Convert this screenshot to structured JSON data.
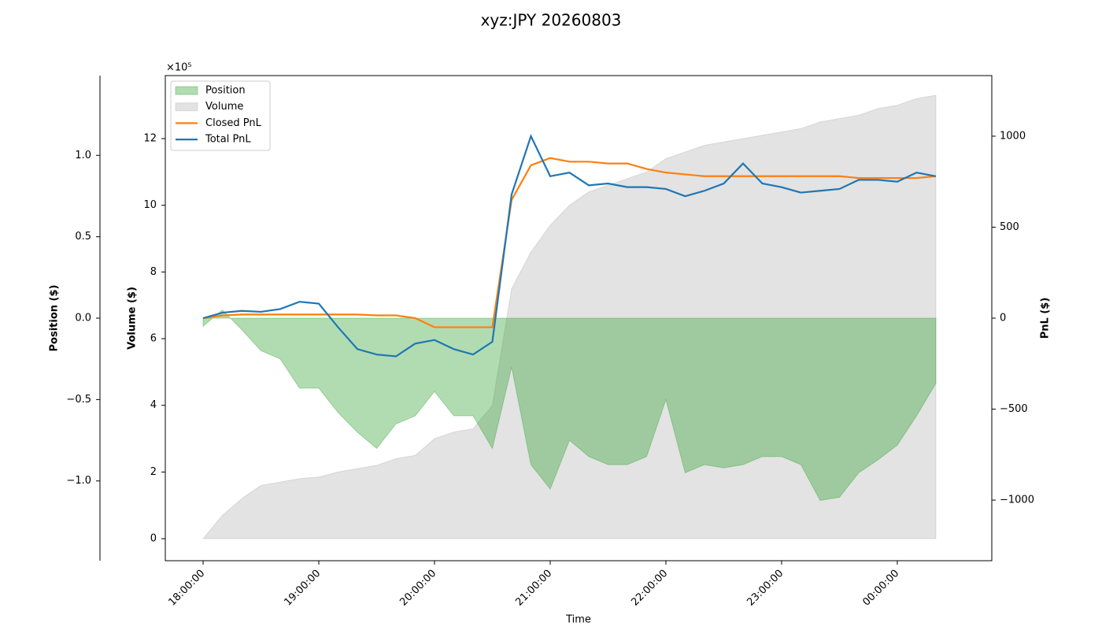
{
  "chart_data": {
    "type": "line",
    "title": "xyz:JPY 20260803",
    "xlabel": "Time",
    "x": [
      "18:00:00",
      "18:10:00",
      "18:20:00",
      "18:30:00",
      "18:40:00",
      "18:50:00",
      "19:00:00",
      "19:10:00",
      "19:20:00",
      "19:30:00",
      "19:40:00",
      "19:50:00",
      "20:00:00",
      "20:10:00",
      "20:20:00",
      "20:30:00",
      "20:40:00",
      "20:50:00",
      "21:00:00",
      "21:10:00",
      "21:20:00",
      "21:30:00",
      "21:40:00",
      "21:50:00",
      "22:00:00",
      "22:10:00",
      "22:20:00",
      "22:30:00",
      "22:40:00",
      "22:50:00",
      "23:00:00",
      "23:10:00",
      "23:20:00",
      "23:30:00",
      "23:40:00",
      "23:50:00",
      "00:00:00",
      "00:10:00",
      "00:20:00"
    ],
    "xlim": [
      "17:40:24",
      "00:49:00"
    ],
    "xticks": [
      "18:00:00",
      "19:00:00",
      "20:00:00",
      "21:00:00",
      "22:00:00",
      "23:00:00",
      "00:00:00"
    ],
    "axes": {
      "position": {
        "label": "Position ($)",
        "color": "#008000",
        "offset_label": "×10⁵",
        "ylim": [
          -1.49,
          1.49
        ],
        "yticks": [
          {
            "value": -1,
            "label": "−1.0"
          },
          {
            "value": -0.5,
            "label": "−0.5"
          },
          {
            "value": 0,
            "label": "0.0"
          },
          0.5,
          {
            "value": 1,
            "label": "1.0"
          }
        ]
      },
      "volume": {
        "label": "Volume ($)",
        "color": "#808080",
        "ylim": [
          -0.66,
          13.89
        ],
        "yticks": [
          0,
          2,
          4,
          6,
          8,
          10,
          12
        ]
      },
      "pnl": {
        "label": "PnL ($)",
        "color": "#000000",
        "ylim": [
          -1333,
          1333
        ],
        "yticks": [
          {
            "value": -1000,
            "label": "−1000"
          },
          {
            "value": -500,
            "label": "−500"
          },
          0,
          500,
          1000
        ]
      }
    },
    "series": [
      {
        "name": "Position",
        "type": "area",
        "axis": "position",
        "color": "#2ca02c",
        "alpha": 0.37,
        "values": [
          -0.05,
          0.05,
          -0.07,
          -0.2,
          -0.25,
          -0.43,
          -0.43,
          -0.58,
          -0.7,
          -0.8,
          -0.65,
          -0.6,
          -0.45,
          -0.6,
          -0.6,
          -0.8,
          -0.3,
          -0.9,
          -1.05,
          -0.75,
          -0.85,
          -0.9,
          -0.9,
          -0.85,
          -0.5,
          -0.95,
          -0.9,
          -0.92,
          -0.9,
          -0.85,
          -0.85,
          -0.9,
          -1.12,
          -1.1,
          -0.95,
          -0.87,
          -0.78,
          -0.6,
          -0.4
        ]
      },
      {
        "name": "Volume",
        "type": "area",
        "axis": "volume",
        "color": "#808080",
        "alpha": 0.22,
        "values": [
          0,
          0.7,
          1.2,
          1.6,
          1.7,
          1.8,
          1.85,
          2.0,
          2.1,
          2.2,
          2.4,
          2.5,
          3.0,
          3.2,
          3.3,
          4.0,
          7.5,
          8.6,
          9.4,
          10.0,
          10.4,
          10.6,
          10.8,
          11.0,
          11.4,
          11.6,
          11.8,
          11.9,
          12.0,
          12.1,
          12.2,
          12.3,
          12.5,
          12.6,
          12.7,
          12.9,
          13.0,
          13.2,
          13.3
        ]
      },
      {
        "name": "Closed PnL",
        "type": "line",
        "axis": "pnl",
        "color": "#ff7f0e",
        "values": [
          0,
          15,
          20,
          20,
          20,
          20,
          20,
          20,
          20,
          15,
          15,
          0,
          -50,
          -50,
          -50,
          -50,
          650,
          840,
          880,
          860,
          860,
          850,
          850,
          820,
          800,
          790,
          780,
          780,
          780,
          780,
          780,
          780,
          780,
          780,
          770,
          770,
          770,
          770,
          780
        ]
      },
      {
        "name": "Total PnL",
        "type": "line",
        "axis": "pnl",
        "color": "#1f77b4",
        "values": [
          0,
          30,
          40,
          35,
          50,
          90,
          80,
          -50,
          -170,
          -200,
          -210,
          -140,
          -120,
          -170,
          -200,
          -130,
          680,
          1000,
          780,
          800,
          730,
          740,
          720,
          720,
          710,
          670,
          700,
          740,
          850,
          740,
          720,
          690,
          700,
          710,
          760,
          760,
          750,
          800,
          780
        ]
      }
    ],
    "draw_order": [
      1,
      0,
      2,
      3
    ],
    "legend": "upper left"
  }
}
